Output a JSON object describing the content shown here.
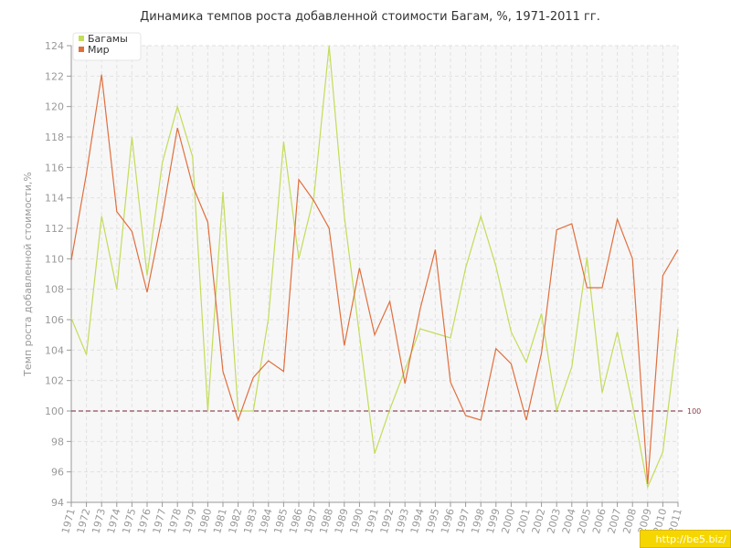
{
  "chart_data": {
    "type": "line",
    "title": "Динамика темпов роста добавленной стоимости Багам, %, 1971-2011 гг.",
    "ylabel": "Темп роста добавленной стоимости,%",
    "xlabel": "",
    "ylim": [
      94,
      124
    ],
    "yticks": [
      94,
      96,
      98,
      100,
      102,
      104,
      106,
      108,
      110,
      112,
      114,
      116,
      118,
      120,
      122,
      124
    ],
    "categories": [
      "1971",
      "1972",
      "1973",
      "1974",
      "1975",
      "1976",
      "1977",
      "1978",
      "1979",
      "1980",
      "1981",
      "1982",
      "1983",
      "1984",
      "1985",
      "1986",
      "1987",
      "1988",
      "1989",
      "1990",
      "1991",
      "1992",
      "1993",
      "1994",
      "1995",
      "1996",
      "1997",
      "1998",
      "1999",
      "2000",
      "2001",
      "2002",
      "2003",
      "2004",
      "2005",
      "2006",
      "2007",
      "2008",
      "2009",
      "2010",
      "2011"
    ],
    "series": [
      {
        "name": "Багамы",
        "color": "#c3dc5a",
        "values": [
          106.1,
          103.7,
          112.8,
          108.0,
          118.0,
          108.9,
          116.3,
          120.0,
          116.7,
          100.0,
          114.4,
          100.0,
          100.0,
          106.1,
          117.7,
          110.0,
          114.1,
          124.0,
          112.8,
          105.0,
          97.2,
          100.1,
          102.7,
          105.4,
          105.1,
          104.8,
          109.4,
          112.8,
          109.5,
          105.2,
          103.2,
          106.4,
          100.0,
          102.9,
          110.1,
          101.2,
          105.2,
          100.4,
          95.0,
          97.3,
          105.4
        ]
      },
      {
        "name": "Мир",
        "color": "#e06f3e",
        "values": [
          109.9,
          115.6,
          122.1,
          113.1,
          111.8,
          107.8,
          112.8,
          118.6,
          114.8,
          112.4,
          102.6,
          99.4,
          102.2,
          103.3,
          102.6,
          115.2,
          113.8,
          112.0,
          104.3,
          109.4,
          105.0,
          107.2,
          101.8,
          106.7,
          110.6,
          101.9,
          99.7,
          99.4,
          104.1,
          103.1,
          99.4,
          103.8,
          111.9,
          112.3,
          108.1,
          108.1,
          112.6,
          110.0,
          95.2,
          108.9,
          110.6
        ]
      }
    ],
    "reference_line": {
      "value": 100,
      "label": "100",
      "color": "#7a1f35"
    },
    "grid": true,
    "legend_position": "top-left"
  },
  "watermark": "http://be5.biz/"
}
